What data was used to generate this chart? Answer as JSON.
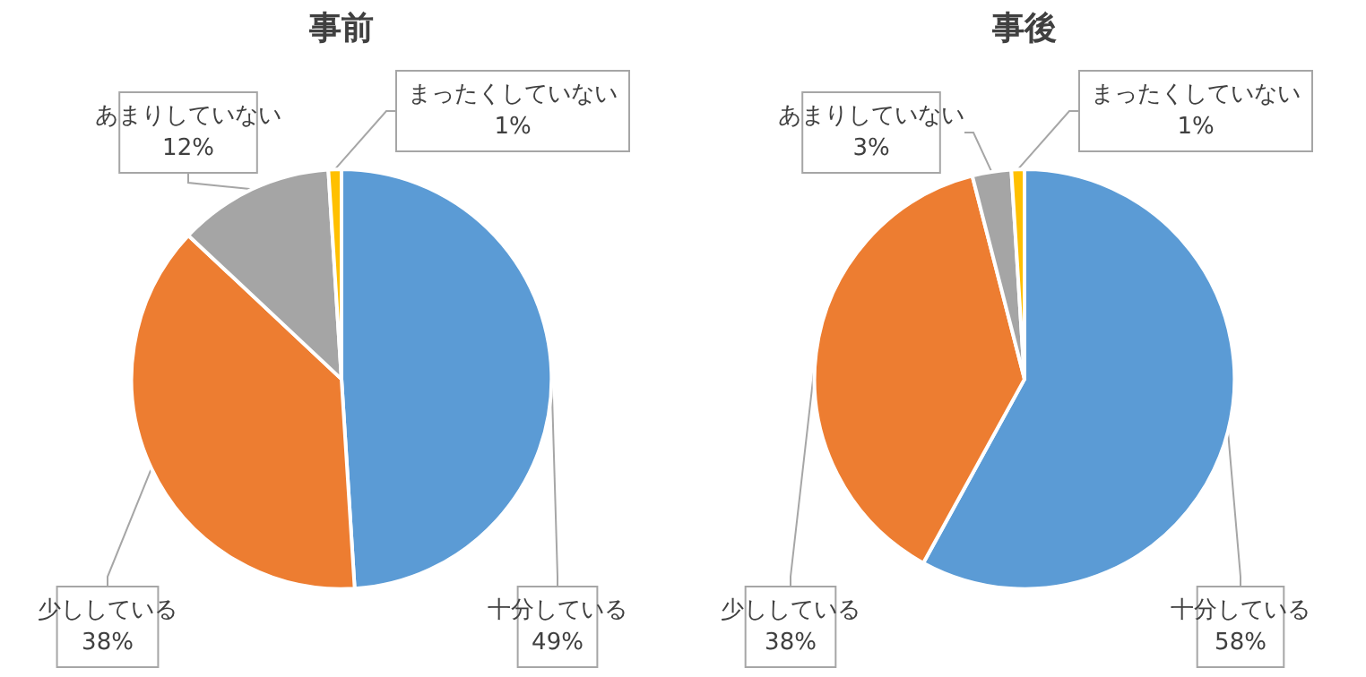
{
  "chart_data": [
    {
      "type": "pie",
      "title": "事前",
      "categories": [
        "十分している",
        "少ししている",
        "あまりしていない",
        "まったくしていない"
      ],
      "values": [
        49,
        38,
        12,
        1
      ],
      "colors": [
        "#5b9bd5",
        "#ed7d31",
        "#a5a5a5",
        "#ffc000"
      ],
      "value_labels": [
        "49%",
        "38%",
        "12%",
        "1%"
      ]
    },
    {
      "type": "pie",
      "title": "事後",
      "categories": [
        "十分している",
        "少ししている",
        "あまりしていない",
        "まったくしていない"
      ],
      "values": [
        58,
        38,
        3,
        1
      ],
      "colors": [
        "#5b9bd5",
        "#ed7d31",
        "#a5a5a5",
        "#ffc000"
      ],
      "value_labels": [
        "58%",
        "38%",
        "3%",
        "1%"
      ]
    }
  ]
}
